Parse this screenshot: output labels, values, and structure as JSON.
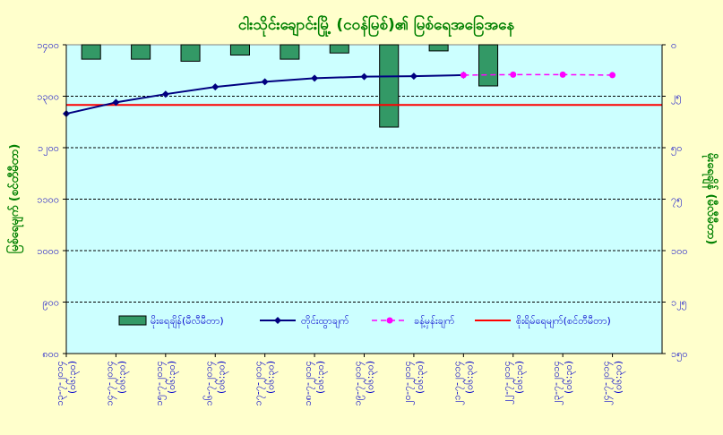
{
  "chart_data": {
    "type": "line",
    "title": "ငါးသိုင်းချောင်းမြို့ (ငဝန်မြစ်)၏ မြစ်ရေအခြေအနေ",
    "ylabel_left": "မြစ်ရေမျက် (စင်တီမီတာ)",
    "ylabel_right": "မိုးရေချိန် (မီလီမီတာ)",
    "left_axis": {
      "min": 800,
      "max": 1400,
      "step": 100,
      "tick_labels": [
        "၈၀၀",
        "၉၀၀",
        "၁၀၀၀",
        "၁၁၀၀",
        "၁၂၀၀",
        "၁၃၀၀",
        "၁၄၀၀"
      ]
    },
    "right_axis": {
      "min": 0,
      "max": 150,
      "step": 25,
      "inverted": true,
      "tick_labels": [
        "၀",
        "၂၅",
        "၅၀",
        "၇၅",
        "၁၀၀",
        "၁၂၅",
        "၁၅၀"
      ]
    },
    "categories": [
      "၁၃-၇-၂၀၁၄",
      "၁၄-၇-၂၀၁၄",
      "၁၅-၇-၂၀၁၄",
      "၁၆-၇-၂၀၁၄",
      "၁၇-၇-၂၀၁၄",
      "၁၈-၇-၂၀၁၄",
      "၁၉-၇-၂၀၁၄",
      "၂၀-၇-၂၀၁၄",
      "၂၁-၇-၂၀၁၄",
      "၂၂-၇-၂၀၁၄",
      "၂၃-၇-၂၀၁၄",
      "၂၄-၇-၂၀၁၄"
    ],
    "category_time": "(၀၆:၃၀)",
    "series": [
      {
        "name": "မိုးရေချိန်(မီလီမီတာ)",
        "kind": "bar",
        "axis": "right",
        "color": "#339966",
        "values": [
          7,
          7,
          8,
          5,
          7,
          4,
          40,
          3,
          20,
          null,
          null,
          null
        ]
      },
      {
        "name": "တိုင်းထွာချက်",
        "kind": "line",
        "axis": "left",
        "color": "#000080",
        "marker": "diamond",
        "values": [
          1266,
          1288,
          1304,
          1318,
          1328,
          1335,
          1338,
          1339,
          1341,
          null,
          null,
          null
        ]
      },
      {
        "name": "ခန့်မှန်းချက်",
        "kind": "line-dashed",
        "axis": "left",
        "color": "#ff00ff",
        "marker": "circle",
        "values": [
          null,
          null,
          null,
          null,
          null,
          null,
          null,
          null,
          1341,
          1342,
          1342,
          1341
        ]
      },
      {
        "name": "စိုးရိမ်ရေမျက်(စင်တီမီတာ)",
        "kind": "hline",
        "axis": "left",
        "color": "#ff0000",
        "value": 1283
      }
    ],
    "grid": true,
    "legend": "inside-bottom"
  }
}
